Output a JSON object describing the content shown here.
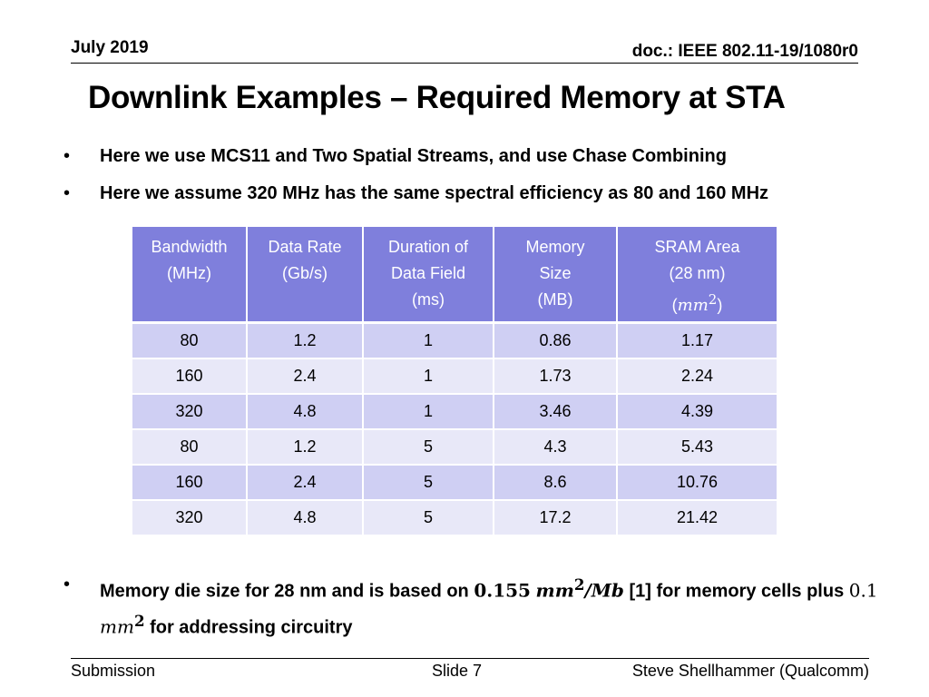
{
  "header": {
    "date": "July 2019",
    "doc": "doc.: IEEE 802.11-19/1080r0"
  },
  "title": "Downlink Examples – Required Memory at STA",
  "bullets": [
    "Here we use MCS11 and Two Spatial Streams, and use Chase Combining",
    "Here we assume 320 MHz has the same spectral efficiency as 80 and 160 MHz"
  ],
  "table": {
    "headers": [
      [
        "Bandwidth",
        "(MHz)"
      ],
      [
        "Data Rate",
        "(Gb/s)"
      ],
      [
        "Duration of",
        "Data Field",
        "(ms)"
      ],
      [
        "Memory",
        "Size",
        "(MB)"
      ],
      [
        "SRAM Area",
        "(28 nm)"
      ]
    ],
    "area_unit": {
      "open": "(",
      "mm": "mm",
      "sup": "2",
      "close": ")"
    },
    "rows": [
      [
        "80",
        "1.2",
        "1",
        "0.86",
        "1.17"
      ],
      [
        "160",
        "2.4",
        "1",
        "1.73",
        "2.24"
      ],
      [
        "320",
        "4.8",
        "1",
        "3.46",
        "4.39"
      ],
      [
        "80",
        "1.2",
        "5",
        "4.3",
        "5.43"
      ],
      [
        "160",
        "2.4",
        "5",
        "8.6",
        "10.76"
      ],
      [
        "320",
        "4.8",
        "5",
        "17.2",
        "21.42"
      ]
    ]
  },
  "bottom_bullet": {
    "part1": "Memory die size for 28 nm and is based on ",
    "math1_num": "0.155",
    "math1_unit": "mm",
    "math1_sup": "2",
    "math1_div": "/Mb",
    "part2": " [1] for memory cells plus ",
    "math2_num": "0.1",
    "math2_unit": "mm",
    "math2_sup": "2",
    "part3": " for addressing circuitry"
  },
  "footer": {
    "left": "Submission",
    "center": "Slide 7",
    "right": "Steve Shellhammer (Qualcomm)"
  }
}
